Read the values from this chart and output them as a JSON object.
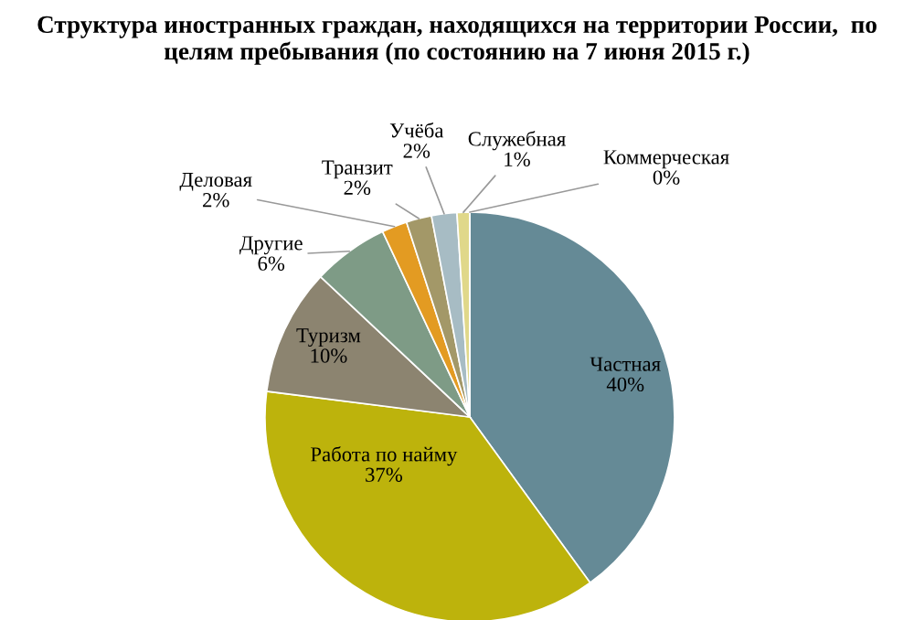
{
  "chart_data": {
    "type": "pie",
    "title": "Структура иностранных граждан, находящихся на территории России,  по целям пребывания (по состоянию на 7 июня 2015 г.)",
    "categories": [
      "Частная",
      "Работа по найму",
      "Туризм",
      "Другие",
      "Деловая",
      "Транзит",
      "Учёба",
      "Служебная",
      "Коммерческая"
    ],
    "values": [
      40,
      37,
      10,
      6,
      2,
      2,
      2,
      1,
      0
    ],
    "colors": [
      "#658a96",
      "#bdb30c",
      "#8c8470",
      "#7e9b86",
      "#e39b22",
      "#a39868",
      "#a7bcc4",
      "#e0d88a",
      "#a09890"
    ],
    "value_labels": [
      "40%",
      "37%",
      "10%",
      "6%",
      "2%",
      "2%",
      "2%",
      "1%",
      "0%"
    ]
  }
}
